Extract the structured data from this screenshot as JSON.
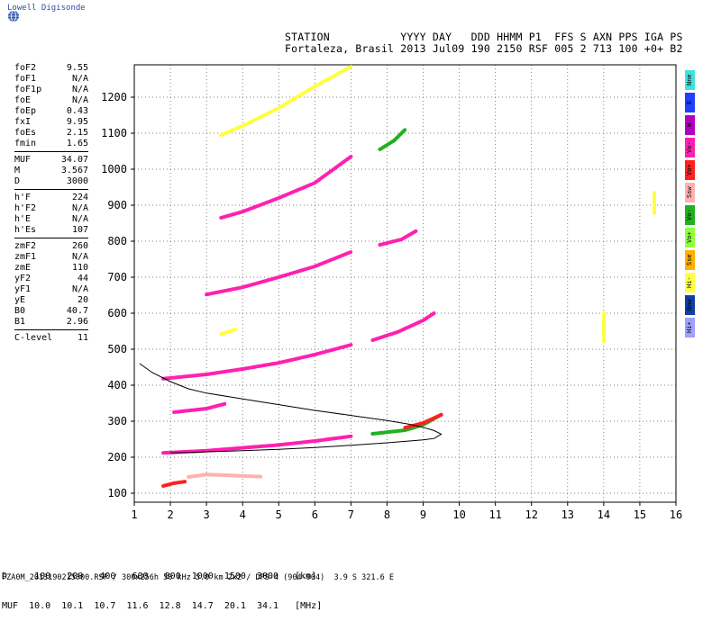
{
  "brand": {
    "name": "Lowell Digisonde"
  },
  "header": {
    "line1": "STATION           YYYY DAY   DDD HHMM P1  FFS S AXN PPS IGA PS",
    "line2": "Fortaleza, Brasil 2013 Jul09 190 2150 RSF 005 2 713 100 +0+ B2"
  },
  "params": {
    "group1": [
      {
        "name": "foF2",
        "value": "9.55"
      },
      {
        "name": "foF1",
        "value": "N/A"
      },
      {
        "name": "foF1p",
        "value": "N/A"
      },
      {
        "name": "foE",
        "value": "N/A"
      },
      {
        "name": "foEp",
        "value": "0.43"
      },
      {
        "name": "fxI",
        "value": "9.95"
      },
      {
        "name": "foEs",
        "value": "2.15"
      },
      {
        "name": "fmin",
        "value": "1.65"
      }
    ],
    "group2": [
      {
        "name": "MUF",
        "value": "34.07"
      },
      {
        "name": "M",
        "value": "3.567"
      },
      {
        "name": "D",
        "value": "3000"
      }
    ],
    "group3": [
      {
        "name": "h'F",
        "value": "224"
      },
      {
        "name": "h'F2",
        "value": "N/A"
      },
      {
        "name": "h'E",
        "value": "N/A"
      },
      {
        "name": "h'Es",
        "value": "107"
      }
    ],
    "group4": [
      {
        "name": "zmF2",
        "value": "260"
      },
      {
        "name": "zmF1",
        "value": "N/A"
      },
      {
        "name": "zmE",
        "value": "110"
      },
      {
        "name": "yF2",
        "value": "44"
      },
      {
        "name": "yF1",
        "value": "N/A"
      },
      {
        "name": "yE",
        "value": "20"
      },
      {
        "name": "B0",
        "value": "40.7"
      },
      {
        "name": "B1",
        "value": "2.96"
      }
    ],
    "group5": [
      {
        "name": "C-level",
        "value": "11"
      }
    ]
  },
  "legend": [
    {
      "label": "Nne",
      "color": "#40e0e0"
    },
    {
      "label": "E",
      "color": "#2040ff"
    },
    {
      "label": "W",
      "color": "#b000c0"
    },
    {
      "label": "Vo-",
      "color": "#ff20b0"
    },
    {
      "label": "Vo+",
      "color": "#ff2020"
    },
    {
      "label": "Ssw",
      "color": "#ffb0b0"
    },
    {
      "label": "Vo-",
      "color": "#20b020"
    },
    {
      "label": "Vo+",
      "color": "#90ff40"
    },
    {
      "label": "Sse",
      "color": "#ffb000"
    },
    {
      "label": "Hi-",
      "color": "#ffff40"
    },
    {
      "label": "Nnw",
      "color": "#1040a0"
    },
    {
      "label": "Hi+",
      "color": "#a0a0ff"
    }
  ],
  "bottom": {
    "line1": "D     100   200   400   600   800  1000  1500  3000   [km]",
    "line2": "MUF  10.0  10.1  10.7  11.6  12.8  14.7  20.1  34.1   [MHz]"
  },
  "footer": "FZA0M_2013190215000.RSF / 300x256h 50 kHz 5.0 km 2x2 / DPS-4 (904-904)  3.9 S 321.6 E",
  "chart_data": {
    "type": "scatter",
    "xlim": [
      1,
      16
    ],
    "ylim": [
      75,
      1290
    ],
    "xticks": [
      1,
      2,
      3,
      4,
      5,
      6,
      7,
      8,
      9,
      10,
      11,
      12,
      13,
      14,
      15,
      16
    ],
    "yticks": [
      100,
      200,
      300,
      400,
      500,
      600,
      700,
      800,
      900,
      1000,
      1100,
      1200
    ],
    "grid": true,
    "traces": [
      {
        "color": "#ff20b0",
        "points": [
          [
            1.8,
            212
          ],
          [
            3,
            218
          ],
          [
            4,
            226
          ],
          [
            5,
            234
          ],
          [
            6,
            245
          ],
          [
            7,
            258
          ]
        ]
      },
      {
        "color": "#20b020",
        "points": [
          [
            7.6,
            265
          ],
          [
            8.5,
            275
          ],
          [
            9,
            290
          ],
          [
            9.5,
            318
          ]
        ]
      },
      {
        "color": "#ff2020",
        "points": [
          [
            8.5,
            282
          ],
          [
            9,
            295
          ],
          [
            9.5,
            318
          ]
        ]
      },
      {
        "color": "#ff20b0",
        "points": [
          [
            1.8,
            418
          ],
          [
            3,
            430
          ],
          [
            4,
            445
          ],
          [
            5,
            462
          ],
          [
            6,
            485
          ],
          [
            7,
            512
          ]
        ]
      },
      {
        "color": "#ff20b0",
        "points": [
          [
            7.6,
            525
          ],
          [
            8.3,
            548
          ],
          [
            9,
            580
          ],
          [
            9.3,
            600
          ]
        ]
      },
      {
        "color": "#ff20b0",
        "points": [
          [
            2.1,
            325
          ],
          [
            3,
            335
          ],
          [
            3.5,
            348
          ]
        ]
      },
      {
        "color": "#ff20b0",
        "points": [
          [
            3,
            652
          ],
          [
            4,
            672
          ],
          [
            5,
            700
          ],
          [
            6,
            730
          ],
          [
            7,
            770
          ]
        ]
      },
      {
        "color": "#ff20b0",
        "points": [
          [
            3.4,
            865
          ],
          [
            4,
            882
          ],
          [
            5,
            920
          ],
          [
            6,
            962
          ],
          [
            7,
            1035
          ]
        ]
      },
      {
        "color": "#ff20b0",
        "points": [
          [
            7.8,
            790
          ],
          [
            8.4,
            805
          ],
          [
            8.8,
            828
          ]
        ]
      },
      {
        "color": "#20b020",
        "points": [
          [
            7.8,
            1055
          ],
          [
            8.2,
            1080
          ],
          [
            8.5,
            1110
          ]
        ]
      },
      {
        "color": "#ffff40",
        "points": [
          [
            3.4,
            1095
          ],
          [
            4,
            1120
          ],
          [
            5,
            1170
          ],
          [
            6,
            1230
          ],
          [
            7,
            1285
          ]
        ]
      },
      {
        "color": "#ff2020",
        "points": [
          [
            1.8,
            120
          ],
          [
            2.1,
            128
          ],
          [
            2.4,
            132
          ]
        ]
      },
      {
        "color": "#ffb0b0",
        "points": [
          [
            2.5,
            145
          ],
          [
            3,
            152
          ],
          [
            4,
            148
          ],
          [
            4.5,
            146
          ]
        ]
      },
      {
        "color": "#ffff40",
        "points": [
          [
            3.4,
            542
          ],
          [
            3.8,
            555
          ]
        ]
      },
      {
        "color": "#ffff40",
        "points": [
          [
            14,
            600
          ],
          [
            14,
            520
          ]
        ]
      },
      {
        "color": "#ffff40",
        "points": [
          [
            15.4,
            935
          ],
          [
            15.4,
            878
          ]
        ]
      }
    ],
    "profile": [
      [
        1.15,
        460
      ],
      [
        1.5,
        435
      ],
      [
        2,
        410
      ],
      [
        2.5,
        390
      ],
      [
        3,
        378
      ],
      [
        4,
        362
      ],
      [
        5,
        346
      ],
      [
        6,
        330
      ],
      [
        7,
        316
      ],
      [
        8,
        302
      ],
      [
        8.6,
        292
      ],
      [
        9,
        283
      ],
      [
        9.3,
        274
      ],
      [
        9.5,
        264
      ],
      [
        9.3,
        252
      ],
      [
        9,
        248
      ],
      [
        8,
        240
      ],
      [
        7,
        233
      ],
      [
        6,
        227
      ],
      [
        5,
        222
      ],
      [
        4,
        218
      ],
      [
        3,
        215
      ],
      [
        2.5,
        213
      ],
      [
        2,
        212
      ]
    ]
  }
}
